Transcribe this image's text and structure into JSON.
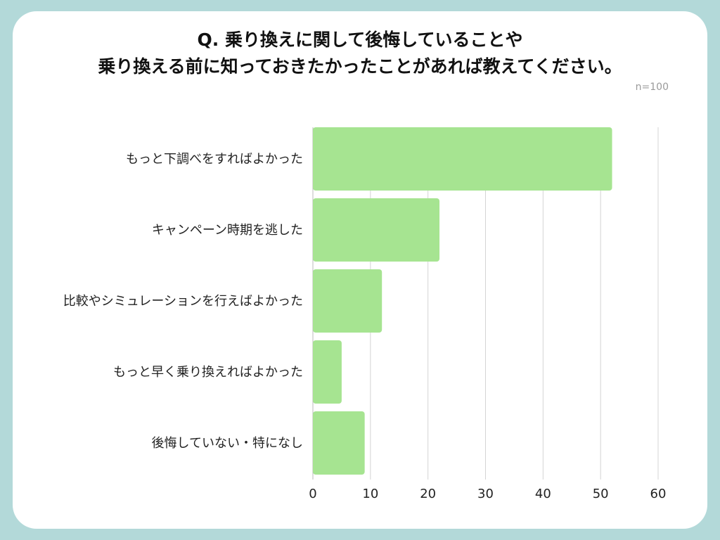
{
  "title": {
    "line1": "Q. 乗り換えに関して後悔していることや",
    "line2": "乗り換える前に知っておきたかったことがあれば教えてください。"
  },
  "sample_size": "n=100",
  "colors": {
    "background": "#b3d9d9",
    "card": "#ffffff",
    "bar": "#a6e491",
    "grid": "#d4d4d4"
  },
  "chart_data": {
    "type": "bar",
    "orientation": "horizontal",
    "categories": [
      "もっと下調べをすればよかった",
      "キャンペーン時期を逃した",
      "比較やシミュレーションを行えばよかった",
      "もっと早く乗り換えればよかった",
      "後悔していない・特になし"
    ],
    "values": [
      52,
      22,
      12,
      5,
      9
    ],
    "xlim": [
      0,
      60
    ],
    "xticks": [
      "0",
      "10",
      "20",
      "30",
      "40",
      "50",
      "60"
    ],
    "grid": true
  }
}
